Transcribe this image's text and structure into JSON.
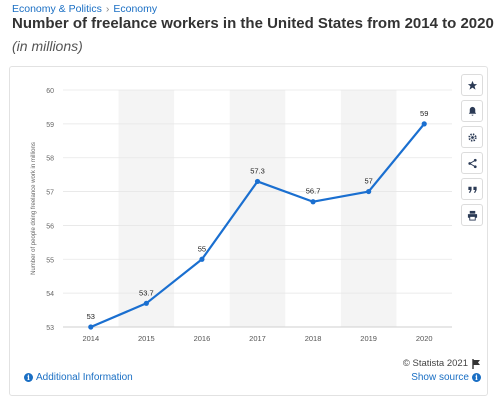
{
  "breadcrumb": {
    "items": [
      "Economy & Politics",
      "Economy"
    ],
    "separator": "›"
  },
  "header": {
    "title": "Number of freelance workers in the United States from 2014 to 2020",
    "subtitle": "(in millions)"
  },
  "sidebar": {
    "icons": [
      "star-icon",
      "bell-icon",
      "gear-icon",
      "share-icon",
      "quote-icon",
      "print-icon"
    ]
  },
  "chart_data": {
    "type": "line",
    "categories": [
      "2014",
      "2015",
      "2016",
      "2017",
      "2018",
      "2019",
      "2020"
    ],
    "values": [
      53,
      53.7,
      55,
      57.3,
      56.7,
      57,
      59
    ],
    "data_labels": [
      "53",
      "53.7",
      "55",
      "57.3",
      "56.7",
      "57",
      "59"
    ],
    "ylabel": "Number of people doing freelance work in millions",
    "ylim": [
      53,
      60
    ],
    "yticks": [
      "53",
      "54",
      "55",
      "56",
      "57",
      "58",
      "59",
      "60"
    ],
    "grid": true,
    "alternating_bands": true,
    "line_color": "#1a6fd0",
    "band_color": "#f4f4f4"
  },
  "footer": {
    "copyright": "© Statista 2021",
    "additional_info": "Additional Information",
    "show_source": "Show source",
    "info_glyph": "i",
    "link_color": "#1a6fc4"
  }
}
